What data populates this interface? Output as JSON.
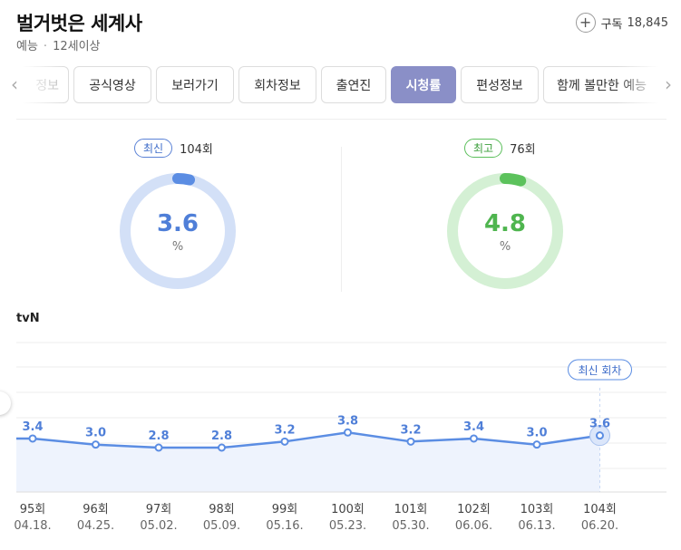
{
  "program": {
    "title": "벌거벗은 세계사",
    "genre": "예능",
    "rating_age": "12세이상"
  },
  "subscribe": {
    "label": "구독",
    "count": "18,845"
  },
  "tabs": [
    {
      "label": "정보",
      "active": false,
      "faded": true
    },
    {
      "label": "공식영상",
      "active": false
    },
    {
      "label": "보러가기",
      "active": false
    },
    {
      "label": "회차정보",
      "active": false
    },
    {
      "label": "출연진",
      "active": false
    },
    {
      "label": "시청률",
      "active": true
    },
    {
      "label": "편성정보",
      "active": false
    },
    {
      "label": "함께 볼만한 예능",
      "active": false
    }
  ],
  "latest": {
    "badge": "최신",
    "episode": "104회",
    "value": "3.6",
    "unit": "%",
    "fraction": 0.036,
    "color": "#5b8de3",
    "track": "#d3e0f7"
  },
  "highest": {
    "badge": "최고",
    "episode": "76회",
    "value": "4.8",
    "unit": "%",
    "fraction": 0.048,
    "color": "#5cc25c",
    "track": "#d4f0d4"
  },
  "chart_data": {
    "type": "area",
    "station": "tvN",
    "episodes": [
      "95회",
      "96회",
      "97회",
      "98회",
      "99회",
      "100회",
      "101회",
      "102회",
      "103회",
      "104회"
    ],
    "dates": [
      "04.18.",
      "04.25.",
      "05.02.",
      "05.09.",
      "05.16.",
      "05.23.",
      "05.30.",
      "06.06.",
      "06.13.",
      "06.20."
    ],
    "values": [
      3.4,
      3.0,
      2.8,
      2.8,
      3.2,
      3.8,
      3.2,
      3.4,
      3.0,
      3.6
    ],
    "value_labels": [
      "3.4",
      "3.0",
      "2.8",
      "2.8",
      "3.2",
      "3.8",
      "3.2",
      "3.4",
      "3.0",
      "3.6"
    ],
    "latest_label": "최신 회차",
    "line_color": "#5b8de3",
    "fill_color": "#eef3fd"
  }
}
